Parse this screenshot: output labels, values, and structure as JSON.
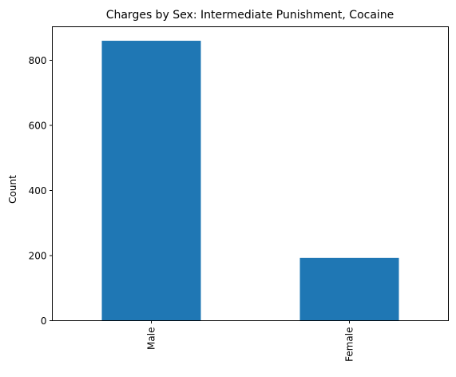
{
  "chart_data": {
    "type": "bar",
    "title": "Charges by Sex: Intermediate Punishment, Cocaine",
    "xlabel": "",
    "ylabel": "Count",
    "categories": [
      "Male",
      "Female"
    ],
    "values": [
      860,
      193
    ],
    "ylim": [
      0,
      903
    ],
    "yticks": [
      0,
      200,
      400,
      600,
      800
    ],
    "ytick_labels": [
      "0",
      "200",
      "400",
      "600",
      "800"
    ],
    "bar_color": "#1f77b4",
    "grid": false,
    "legend": "none"
  }
}
